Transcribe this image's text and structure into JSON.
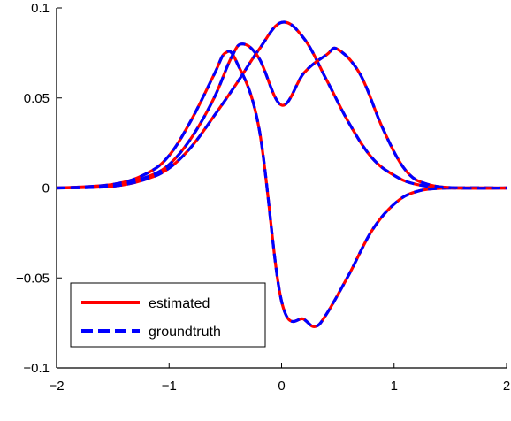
{
  "chart_data": {
    "type": "line",
    "title": "",
    "xlabel": "",
    "ylabel": "",
    "xlim": [
      -2,
      2
    ],
    "ylim": [
      -0.1,
      0.1
    ],
    "x_ticks": [
      "−2",
      "−1",
      "0",
      "1",
      "2"
    ],
    "y_ticks": [
      "−0.1",
      "−0.05",
      "0",
      "0.05",
      "0.1"
    ],
    "grid": false,
    "legend": {
      "placement": "bottom-left",
      "entries": [
        {
          "label": "estimated",
          "color": "#ff0000",
          "style": "solid"
        },
        {
          "label": "groundtruth",
          "color": "#0000ff",
          "style": "dashed"
        }
      ]
    },
    "curve_families": [
      {
        "name_hint": "mode-1",
        "points": [
          [
            -2.0,
            0.0
          ],
          [
            -1.5,
            0.001
          ],
          [
            -1.2,
            0.005
          ],
          [
            -1.0,
            0.011
          ],
          [
            -0.8,
            0.023
          ],
          [
            -0.6,
            0.04
          ],
          [
            -0.4,
            0.058
          ],
          [
            -0.2,
            0.077
          ],
          [
            0.0,
            0.092
          ],
          [
            0.2,
            0.083
          ],
          [
            0.4,
            0.06
          ],
          [
            0.6,
            0.036
          ],
          [
            0.8,
            0.017
          ],
          [
            1.0,
            0.007
          ],
          [
            1.2,
            0.002
          ],
          [
            1.5,
            0.0
          ],
          [
            2.0,
            0.0
          ]
        ]
      },
      {
        "name_hint": "mode-2",
        "points": [
          [
            -2.0,
            0.0
          ],
          [
            -1.5,
            0.002
          ],
          [
            -1.2,
            0.008
          ],
          [
            -1.0,
            0.018
          ],
          [
            -0.8,
            0.038
          ],
          [
            -0.6,
            0.063
          ],
          [
            -0.5,
            0.075
          ],
          [
            -0.4,
            0.07
          ],
          [
            -0.2,
            0.033
          ],
          [
            0.0,
            -0.063
          ],
          [
            0.2,
            -0.073
          ],
          [
            0.3,
            -0.077
          ],
          [
            0.4,
            -0.07
          ],
          [
            0.6,
            -0.048
          ],
          [
            0.8,
            -0.024
          ],
          [
            1.0,
            -0.009
          ],
          [
            1.2,
            -0.002
          ],
          [
            1.5,
            0.0
          ],
          [
            2.0,
            0.0
          ]
        ]
      },
      {
        "name_hint": "mode-3",
        "points": [
          [
            -2.0,
            0.0
          ],
          [
            -1.5,
            0.001
          ],
          [
            -1.2,
            0.006
          ],
          [
            -1.0,
            0.013
          ],
          [
            -0.8,
            0.028
          ],
          [
            -0.6,
            0.05
          ],
          [
            -0.45,
            0.072
          ],
          [
            -0.35,
            0.08
          ],
          [
            -0.2,
            0.072
          ],
          [
            0.0,
            0.046
          ],
          [
            0.2,
            0.064
          ],
          [
            0.4,
            0.074
          ],
          [
            0.5,
            0.077
          ],
          [
            0.7,
            0.063
          ],
          [
            0.9,
            0.033
          ],
          [
            1.1,
            0.01
          ],
          [
            1.3,
            0.002
          ],
          [
            1.6,
            0.0
          ],
          [
            2.0,
            0.0
          ]
        ]
      }
    ]
  }
}
